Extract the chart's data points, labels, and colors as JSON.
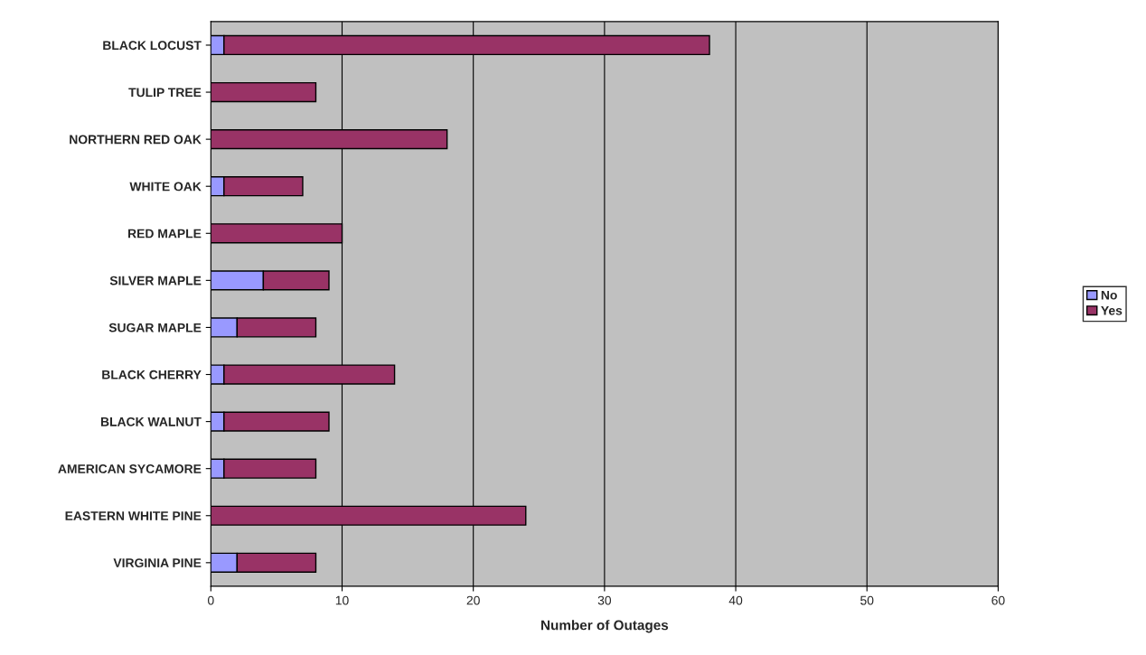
{
  "chart_data": {
    "type": "bar",
    "orientation": "horizontal",
    "stacked": true,
    "categories": [
      "BLACK LOCUST",
      "TULIP TREE",
      "NORTHERN RED OAK",
      "WHITE OAK",
      "RED MAPLE",
      "SILVER MAPLE",
      "SUGAR MAPLE",
      "BLACK CHERRY",
      "BLACK WALNUT",
      "AMERICAN SYCAMORE",
      "EASTERN WHITE PINE",
      "VIRGINIA PINE"
    ],
    "series": [
      {
        "name": "No",
        "color": "#9999ff",
        "values": [
          1,
          null,
          null,
          1,
          null,
          4,
          2,
          1,
          1,
          1,
          null,
          2
        ]
      },
      {
        "name": "Yes",
        "color": "#993366",
        "values": [
          37,
          8,
          18,
          6,
          10,
          5,
          6,
          13,
          8,
          7,
          24,
          6
        ]
      }
    ],
    "xlabel": "Number of Outages",
    "xlim": [
      0,
      60
    ],
    "xticks": [
      0,
      10,
      20,
      30,
      40,
      50,
      60
    ],
    "grid": "x",
    "legend": "right"
  }
}
